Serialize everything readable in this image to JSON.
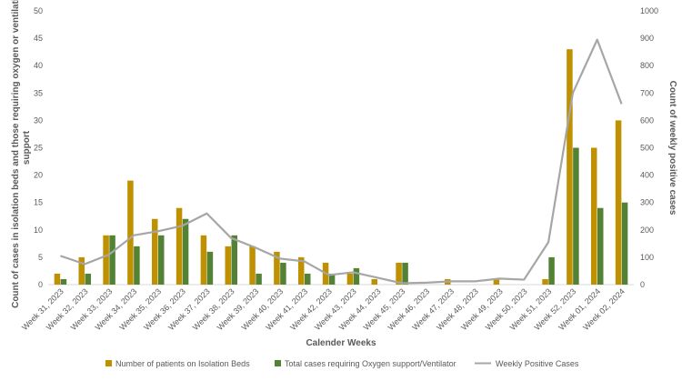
{
  "chart_data": {
    "type": "bar",
    "categories": [
      "Week 31, 2023",
      "Week 32, 2023",
      "Week 33, 2023",
      "Week 34, 2023",
      "Week 35, 2023",
      "Week 36, 2023",
      "Week 37, 2023",
      "Week 38, 2023",
      "Week 39, 2023",
      "Week 40, 2023",
      "Week 41, 2023",
      "Week 42, 2023",
      "Week 43, 2023",
      "Week 44, 2023",
      "Week 45, 2023",
      "Week 46, 2023",
      "Week 47, 2023",
      "Week 48, 2023",
      "Week 49, 2023",
      "Week 50, 2023",
      "Week 51, 2023",
      "Week 52, 2023",
      "Week 01, 2024",
      "Week 02, 2024"
    ],
    "series": [
      {
        "name": "Number of patients on Isolation Beds",
        "kind": "bar",
        "axis": "left",
        "color": "#BF9000",
        "values": [
          2,
          5,
          9,
          19,
          12,
          14,
          9,
          7,
          7,
          6,
          5,
          4,
          2,
          1,
          4,
          0,
          1,
          0,
          1,
          0,
          1,
          43,
          25,
          30
        ]
      },
      {
        "name": "Total cases requiring Oxygen support/Ventilator",
        "kind": "bar",
        "axis": "left",
        "color": "#548235",
        "values": [
          1,
          2,
          9,
          7,
          9,
          12,
          6,
          9,
          2,
          4,
          2,
          2,
          3,
          0,
          4,
          0,
          0,
          0,
          0,
          0,
          5,
          25,
          14,
          15
        ]
      },
      {
        "name": "Weekly Positive Cases",
        "kind": "line",
        "axis": "right",
        "color": "#A6A6A6",
        "values": [
          105,
          75,
          110,
          180,
          195,
          215,
          260,
          170,
          135,
          95,
          85,
          35,
          45,
          25,
          5,
          7,
          12,
          12,
          22,
          18,
          155,
          700,
          895,
          660
        ]
      }
    ],
    "title": "",
    "xlabel": "Calender Weeks",
    "ylabel": "Count of cases in isolation beds and those requiring oxygen or ventilation support",
    "y2label": "Count of weekly positive cases",
    "ylim": [
      0,
      50
    ],
    "yticks": [
      0,
      5,
      10,
      15,
      20,
      25,
      30,
      35,
      40,
      45,
      50
    ],
    "y2lim": [
      0,
      1000
    ],
    "y2ticks": [
      0,
      100,
      200,
      300,
      400,
      500,
      600,
      700,
      800,
      900,
      1000
    ],
    "legend": "bottom",
    "grid": false
  }
}
